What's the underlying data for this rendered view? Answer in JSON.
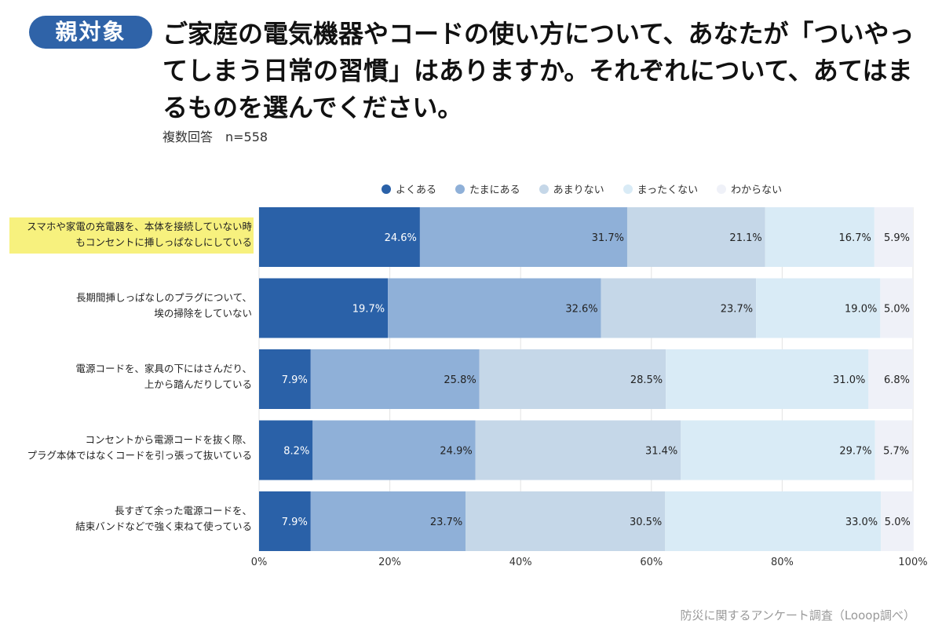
{
  "badge": {
    "label": "親対象",
    "color": "#2f63a8"
  },
  "title": "ご家庭の電気機器やコードの使い方について、あなたが「ついやってしまう日常の習慣」はありますか。それぞれについて、あてはまるものを選んでください。",
  "subtitle": "複数回答　n=558",
  "source": "防災に関するアンケート調査（Looop調べ）",
  "colors": {
    "highlight": "#f7f17e"
  },
  "chart_data": {
    "type": "bar",
    "orientation": "horizontal",
    "stacked": true,
    "categories": [
      [
        "スマホや家電の充電器を、本体を接続していない時",
        "もコンセントに挿しっぱなしにしている"
      ],
      [
        "長期間挿しっぱなしのプラグについて、",
        "埃の掃除をしていない"
      ],
      [
        "電源コードを、家具の下にはさんだり、",
        "上から踏んだりしている"
      ],
      [
        "コンセントから電源コードを抜く際、",
        "プラグ本体ではなくコードを引っ張って抜いている"
      ],
      [
        "長すぎて余った電源コードを、",
        "結束バンドなどで強く束ねて使っている"
      ]
    ],
    "highlighted_category": 0,
    "series": [
      {
        "name": "よくある",
        "color": "#2a61a8",
        "values": [
          24.6,
          19.7,
          7.9,
          8.2,
          7.9
        ]
      },
      {
        "name": "たまにある",
        "color": "#8fb0d8",
        "values": [
          31.7,
          32.6,
          25.8,
          24.9,
          23.7
        ]
      },
      {
        "name": "あまりない",
        "color": "#c5d7e8",
        "values": [
          21.1,
          23.7,
          28.5,
          31.4,
          30.5
        ]
      },
      {
        "name": "まったくない",
        "color": "#d9ebf6",
        "values": [
          16.7,
          19.0,
          31.0,
          29.7,
          33.0
        ]
      },
      {
        "name": "わからない",
        "color": "#eff1f8",
        "values": [
          5.9,
          5.0,
          6.8,
          5.7,
          5.0
        ]
      }
    ],
    "xlim": [
      0,
      100
    ],
    "x_ticks": [
      "0%",
      "20%",
      "40%",
      "60%",
      "80%",
      "100%"
    ],
    "legend_position": "top",
    "grid": true
  }
}
